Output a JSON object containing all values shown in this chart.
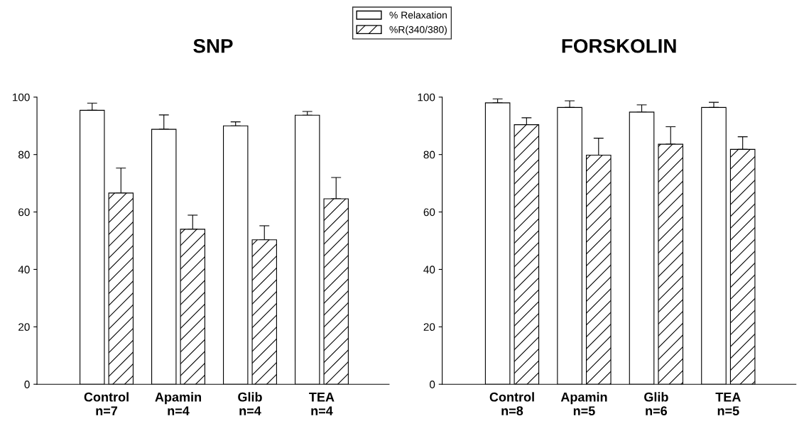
{
  "chart_data": [
    {
      "type": "bar",
      "title": "SNP",
      "categories": [
        "Control\nn=7",
        "Apamin\nn=4",
        "Glib\nn=4",
        "TEA\nn=4"
      ],
      "ylim": [
        0,
        100
      ],
      "yticks": [
        0,
        20,
        40,
        60,
        80,
        100
      ],
      "grid": false,
      "legend": "top",
      "series": [
        {
          "name": "% Relaxation",
          "color": "#ffffff",
          "values": [
            95.4,
            88.8,
            90.0,
            93.7
          ],
          "errors": [
            [
              95.4,
              97.9
            ],
            [
              88.8,
              93.8
            ],
            [
              90.0,
              91.4
            ],
            [
              93.7,
              95.0
            ]
          ]
        },
        {
          "name": "%R(340/380)",
          "color": "#000000",
          "values": [
            66.6,
            54.0,
            50.3,
            64.6
          ],
          "errors": [
            [
              66.6,
              75.3
            ],
            [
              54.0,
              58.9
            ],
            [
              50.3,
              55.2
            ],
            [
              64.6,
              72.0
            ]
          ]
        }
      ]
    },
    {
      "type": "bar",
      "title": "FORSKOLIN",
      "categories": [
        "Control\nn=8",
        "Apamin\nn=5",
        "Glib\nn=6",
        "TEA\nn=5"
      ],
      "ylim": [
        0,
        100
      ],
      "yticks": [
        0,
        20,
        40,
        60,
        80,
        100
      ],
      "grid": false,
      "series": [
        {
          "color": "#ffffff",
          "values": [
            98.0,
            96.4,
            94.8,
            96.4
          ],
          "errors": [
            [
              98.0,
              99.4
            ],
            [
              96.4,
              98.7
            ],
            [
              94.8,
              97.3
            ],
            [
              96.4,
              98.2
            ]
          ]
        },
        {
          "color": "#000000",
          "values": [
            90.4,
            79.8,
            83.6,
            81.8
          ],
          "errors": [
            [
              90.4,
              92.8
            ],
            [
              79.8,
              85.7
            ],
            [
              83.6,
              89.7
            ],
            [
              81.8,
              86.2
            ]
          ]
        }
      ]
    }
  ]
}
